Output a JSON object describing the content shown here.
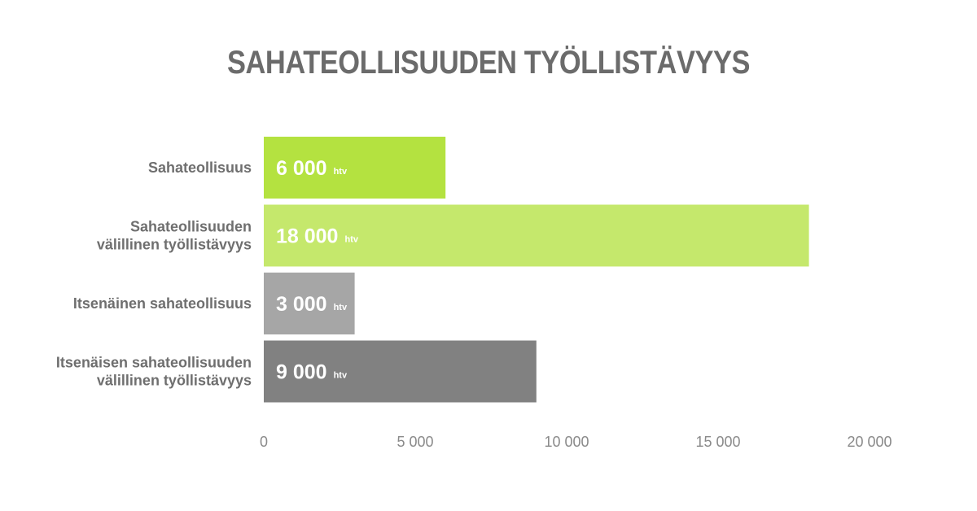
{
  "chart_data": {
    "type": "bar",
    "orientation": "horizontal",
    "title": "SAHATEOLLISUUDEN TYÖLLISTÄVYYS",
    "categories": [
      [
        "Sahateollisuus"
      ],
      [
        "Sahateollisuuden",
        "välillinen työllistävyys"
      ],
      [
        "Itsenäinen sahateollisuus"
      ],
      [
        "Itsenäisen sahateollisuuden",
        "välillinen työllistävyys"
      ]
    ],
    "values": [
      6000,
      18000,
      3000,
      9000
    ],
    "value_labels": [
      "6 000",
      "18 000",
      "3 000",
      "9 000"
    ],
    "unit": "htv",
    "bar_colors": [
      "#b4e240",
      "#c5e86c",
      "#a6a6a6",
      "#818181"
    ],
    "xlim": [
      0,
      20000
    ],
    "ticks": [
      0,
      5000,
      10000,
      15000,
      20000
    ],
    "tick_labels": [
      "0",
      "5 000",
      "10 000",
      "15 000",
      "20 000"
    ],
    "xlabel": "",
    "ylabel": "",
    "grid": false,
    "legend": "none"
  }
}
